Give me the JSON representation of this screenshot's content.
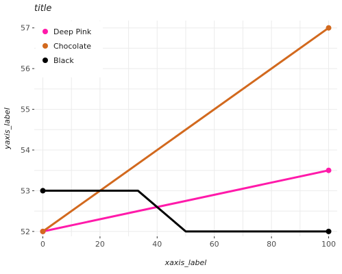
{
  "chart_data": {
    "type": "line",
    "title": "title",
    "xlabel": "xaxis_label",
    "ylabel": "yaxis_label",
    "xlim": [
      -3,
      103
    ],
    "ylim": [
      51.88,
      57.18
    ],
    "x_ticks": [
      0,
      20,
      40,
      60,
      80,
      100
    ],
    "y_ticks": [
      52,
      53,
      54,
      55,
      56,
      57
    ],
    "grid": true,
    "legend_position": "top-left",
    "series": [
      {
        "name": "Deep Pink",
        "color": "#ff1aaa",
        "points": [
          [
            0,
            52
          ],
          [
            100,
            53.5
          ]
        ]
      },
      {
        "name": "Chocolate",
        "color": "#d2691e",
        "points": [
          [
            0,
            52
          ],
          [
            100,
            57
          ]
        ]
      },
      {
        "name": "Black",
        "color": "#000000",
        "points": [
          [
            0,
            53
          ],
          [
            33.3,
            53
          ],
          [
            50,
            52
          ],
          [
            100,
            52
          ]
        ]
      }
    ]
  }
}
